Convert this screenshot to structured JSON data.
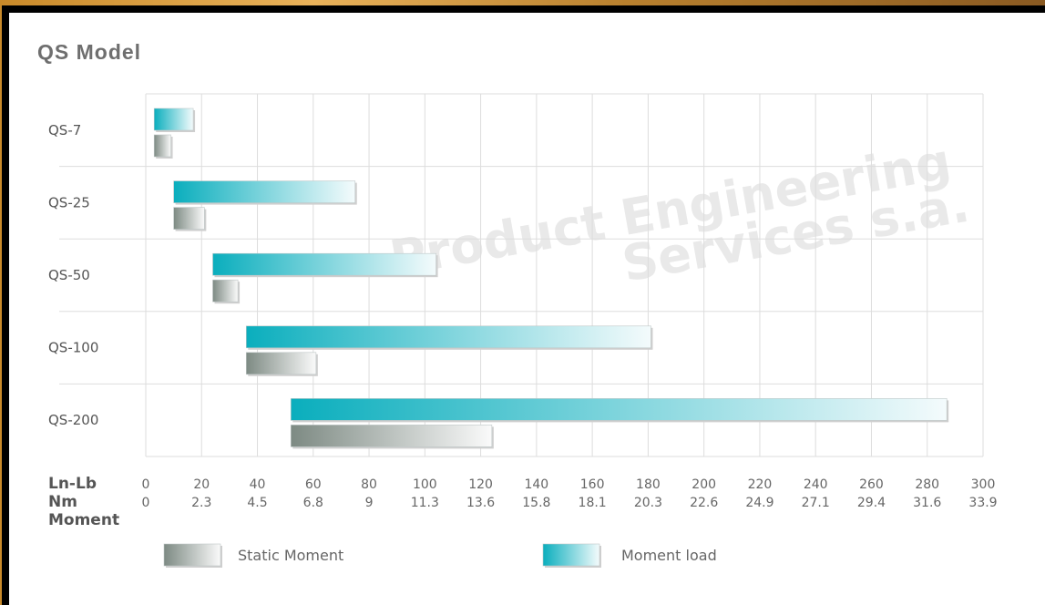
{
  "title": "QS Model",
  "watermark": [
    "Product Engineering",
    "Services s.a."
  ],
  "chart_data": {
    "type": "bar",
    "orientation": "horizontal",
    "title": "QS Model",
    "categories": [
      "QS-7",
      "QS-25",
      "QS-50",
      "QS-100",
      "QS-200"
    ],
    "xlim": [
      0,
      300
    ],
    "grid": true,
    "axis_rows": [
      {
        "label": "Ln-Lb",
        "ticks": [
          "0",
          "20",
          "40",
          "60",
          "80",
          "100",
          "120",
          "140",
          "160",
          "180",
          "200",
          "220",
          "240",
          "260",
          "280",
          "300"
        ]
      },
      {
        "label": "Nm",
        "ticks": [
          "0",
          "2.3",
          "4.5",
          "6.8",
          "9",
          "11.3",
          "13.6",
          "15.8",
          "18.1",
          "20.3",
          "22.6",
          "24.9",
          "27.1",
          "29.4",
          "31.6",
          "33.9"
        ]
      }
    ],
    "axis_caption": "Moment",
    "series": [
      {
        "name": "Moment load",
        "color": "#10b2c2",
        "ranges": [
          [
            3,
            17
          ],
          [
            10,
            75
          ],
          [
            24,
            104
          ],
          [
            36,
            181
          ],
          [
            52,
            287
          ]
        ]
      },
      {
        "name": "Static Moment",
        "color": "#8a958f",
        "ranges": [
          [
            3,
            9
          ],
          [
            10,
            21
          ],
          [
            24,
            33
          ],
          [
            36,
            61
          ],
          [
            52,
            124
          ]
        ]
      }
    ],
    "legend": [
      {
        "label": "Static Moment",
        "series": "Static Moment"
      },
      {
        "label": "Moment load",
        "series": "Moment load"
      }
    ],
    "legend_position": "bottom"
  }
}
